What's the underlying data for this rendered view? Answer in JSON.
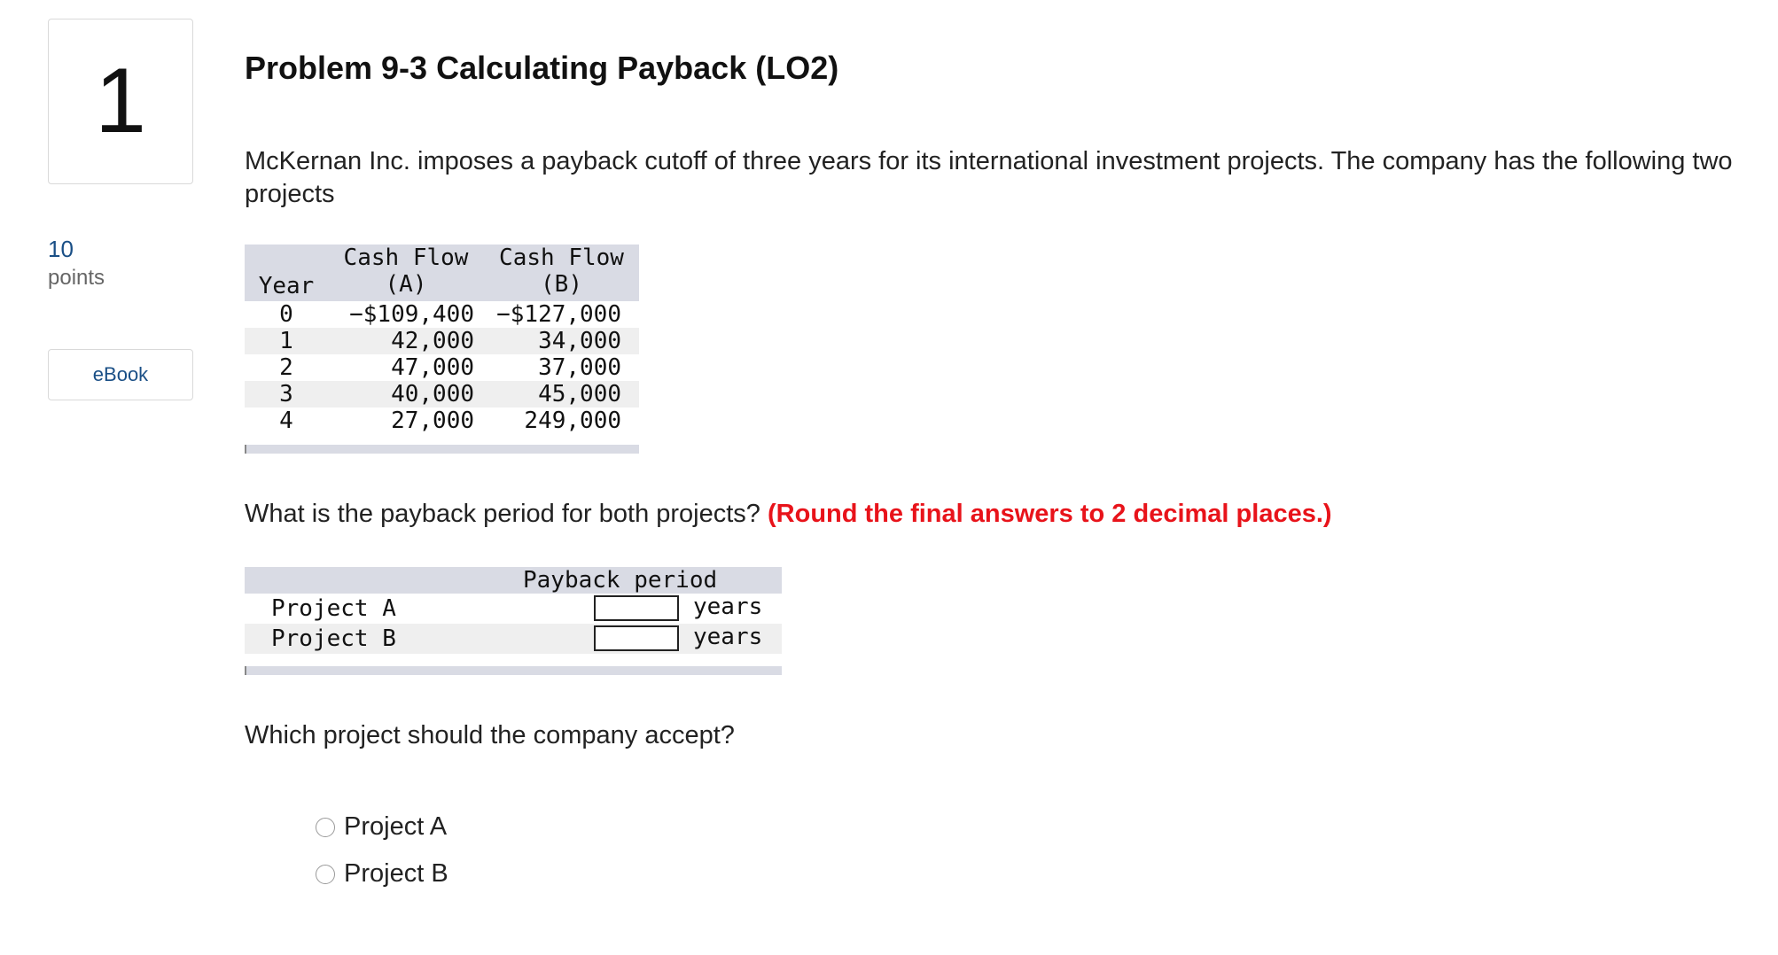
{
  "question_number": "1",
  "points": {
    "value": "10",
    "label": "points"
  },
  "ebook_label": "eBook",
  "title": "Problem 9-3 Calculating Payback (LO2)",
  "intro": "McKernan Inc. imposes a payback cutoff of three years for its international investment projects. The company has the following two projects",
  "cash_flow_table": {
    "headers": {
      "year": "Year",
      "a_line1": "Cash Flow",
      "a_line2": "(A)",
      "b_line1": "Cash Flow",
      "b_line2": "(B)"
    },
    "rows": [
      {
        "year": "0",
        "a": "−$109,400",
        "b": "−$127,000"
      },
      {
        "year": "1",
        "a": "42,000",
        "b": "34,000"
      },
      {
        "year": "2",
        "a": "47,000",
        "b": "37,000"
      },
      {
        "year": "3",
        "a": "40,000",
        "b": "45,000"
      },
      {
        "year": "4",
        "a": "27,000",
        "b": "249,000"
      }
    ]
  },
  "question": {
    "text": "What is the payback period for both projects?",
    "hint": "(Round the final answers to 2 decimal places.)"
  },
  "payback_table": {
    "header": "Payback period",
    "rows": [
      {
        "label": "Project A",
        "value": "",
        "unit": "years"
      },
      {
        "label": "Project B",
        "value": "",
        "unit": "years"
      }
    ]
  },
  "question2": "Which project should the company accept?",
  "options": [
    "Project A",
    "Project B"
  ]
}
